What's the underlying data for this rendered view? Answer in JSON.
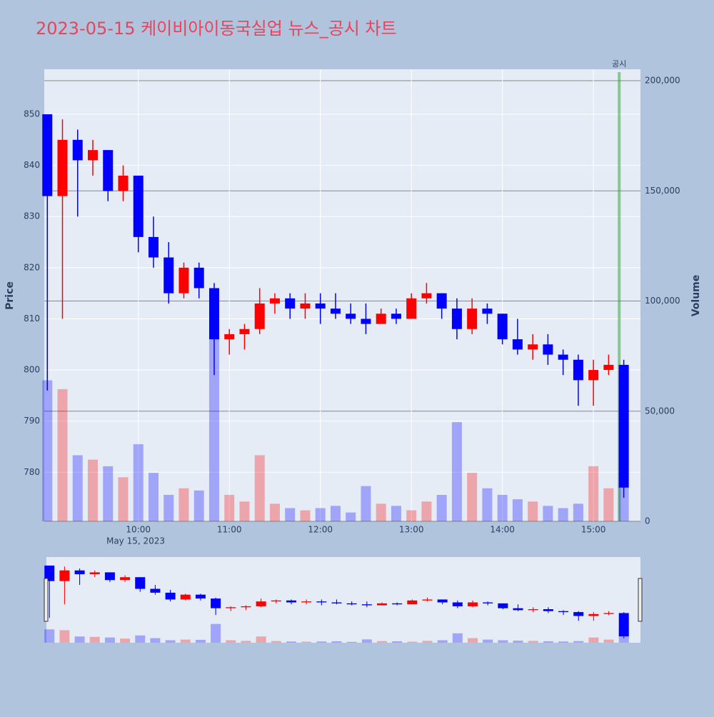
{
  "chart_data": {
    "type": "candlestick",
    "title": "2023-05-15 케이비아이동국실업 뉴스_공시 차트",
    "y_label": "Price",
    "y2_label": "Volume",
    "x_date_label": "May 15, 2023",
    "up_color": "#ff0000",
    "down_color": "#0000ff",
    "x": [
      "2023-05-15 09:00",
      "2023-05-15 09:10",
      "2023-05-15 09:20",
      "2023-05-15 09:30",
      "2023-05-15 09:40",
      "2023-05-15 09:50",
      "2023-05-15 10:00",
      "2023-05-15 10:10",
      "2023-05-15 10:20",
      "2023-05-15 10:30",
      "2023-05-15 10:40",
      "2023-05-15 10:50",
      "2023-05-15 11:00",
      "2023-05-15 11:10",
      "2023-05-15 11:20",
      "2023-05-15 11:30",
      "2023-05-15 11:40",
      "2023-05-15 11:50",
      "2023-05-15 12:00",
      "2023-05-15 12:10",
      "2023-05-15 12:20",
      "2023-05-15 12:30",
      "2023-05-15 12:40",
      "2023-05-15 12:50",
      "2023-05-15 13:00",
      "2023-05-15 13:10",
      "2023-05-15 13:20",
      "2023-05-15 13:30",
      "2023-05-15 13:40",
      "2023-05-15 13:50",
      "2023-05-15 14:00",
      "2023-05-15 14:10",
      "2023-05-15 14:20",
      "2023-05-15 14:30",
      "2023-05-15 14:40",
      "2023-05-15 14:50",
      "2023-05-15 15:00",
      "2023-05-15 15:10",
      "2023-05-15 15:20"
    ],
    "open": [
      850,
      834,
      845,
      841,
      843,
      835,
      838,
      826,
      822,
      815,
      820,
      816,
      806,
      807,
      808,
      813,
      814,
      812,
      813,
      812,
      811,
      810,
      809,
      811,
      810,
      814,
      815,
      812,
      808,
      812,
      811,
      806,
      804,
      805,
      803,
      802,
      798,
      800,
      801
    ],
    "high": [
      850,
      849,
      847,
      845,
      843,
      840,
      838,
      830,
      825,
      821,
      821,
      817,
      808,
      809,
      816,
      815,
      815,
      815,
      815,
      815,
      813,
      813,
      812,
      812,
      815,
      817,
      815,
      814,
      814,
      813,
      811,
      810,
      807,
      807,
      804,
      803,
      802,
      803,
      802
    ],
    "low": [
      796,
      810,
      830,
      838,
      833,
      833,
      823,
      820,
      813,
      814,
      814,
      799,
      803,
      804,
      807,
      811,
      810,
      810,
      809,
      810,
      809,
      807,
      809,
      809,
      810,
      813,
      810,
      806,
      807,
      809,
      805,
      803,
      802,
      801,
      799,
      793,
      793,
      799,
      775
    ],
    "close": [
      834,
      845,
      841,
      843,
      835,
      838,
      826,
      822,
      815,
      820,
      816,
      806,
      807,
      808,
      813,
      814,
      812,
      813,
      812,
      811,
      810,
      809,
      811,
      810,
      814,
      815,
      812,
      808,
      812,
      811,
      806,
      804,
      805,
      803,
      802,
      798,
      800,
      801,
      777
    ],
    "volume": [
      64000,
      60000,
      30000,
      28000,
      25000,
      20000,
      35000,
      22000,
      12000,
      15000,
      14000,
      90000,
      12000,
      9000,
      30000,
      8000,
      6000,
      5000,
      6000,
      7000,
      4000,
      16000,
      8000,
      7000,
      5000,
      9000,
      12000,
      45000,
      22000,
      15000,
      12000,
      10000,
      9000,
      7000,
      6000,
      8000,
      25000,
      15000,
      70000
    ],
    "xlim": [
      "2023-05-15 08:58",
      "2023-05-15 15:31"
    ],
    "xticks": [
      {
        "value": "2023-05-15 10:00",
        "label": "10:00"
      },
      {
        "value": "2023-05-15 11:00",
        "label": "11:00"
      },
      {
        "value": "2023-05-15 12:00",
        "label": "12:00"
      },
      {
        "value": "2023-05-15 13:00",
        "label": "13:00"
      },
      {
        "value": "2023-05-15 14:00",
        "label": "14:00"
      },
      {
        "value": "2023-05-15 15:00",
        "label": "15:00"
      }
    ],
    "ylim": [
      770.4,
      858.8
    ],
    "yticks": [
      780,
      790,
      800,
      810,
      820,
      830,
      840,
      850
    ],
    "y2lim": [
      0,
      205200
    ],
    "y2ticks": [
      0,
      {
        "value": 50000,
        "label": "50,000"
      },
      {
        "value": 100000,
        "label": "100,000"
      },
      {
        "value": 150000,
        "label": "150,000"
      },
      {
        "value": 200000,
        "label": "200,000"
      }
    ],
    "annotations": [
      {
        "x": "2023-05-15 15:17",
        "text": "공시"
      }
    ]
  }
}
